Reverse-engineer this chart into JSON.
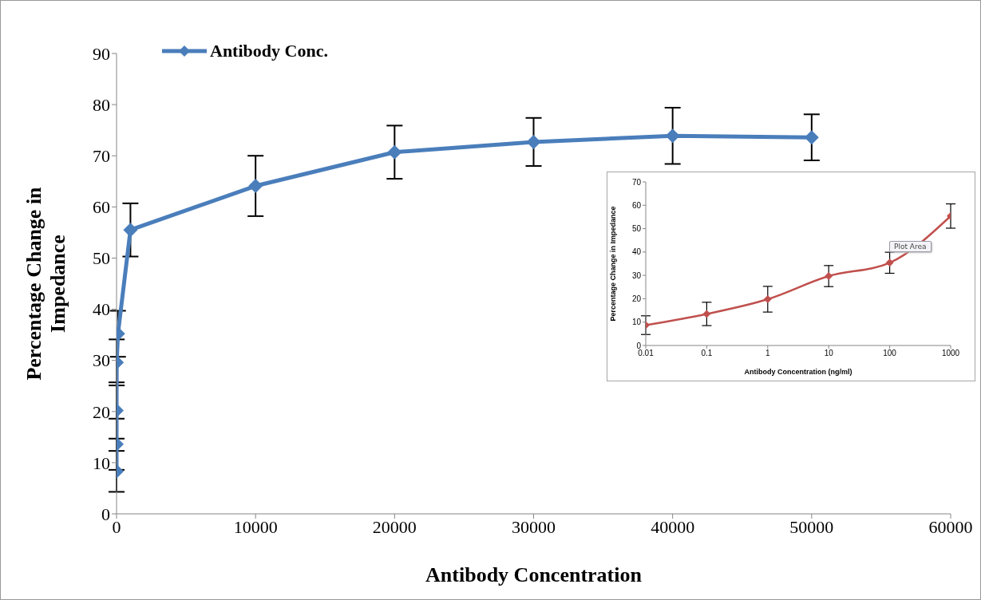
{
  "chart_data": [
    {
      "type": "line",
      "xlabel": "Antibody Concentration",
      "ylabel": "Percentage Change in Impedance",
      "x": [
        0.01,
        0.1,
        1,
        10,
        100,
        1000,
        10000,
        20000,
        30000,
        40000,
        50000
      ],
      "series": [
        {
          "name": "Antibody Conc.",
          "color": "#4a7ebb",
          "values": [
            8.3,
            13.6,
            20.2,
            29.6,
            35.2,
            55.5,
            64.1,
            70.7,
            72.7,
            73.9,
            73.6
          ],
          "errors": [
            4,
            5,
            5.5,
            4.5,
            4.5,
            5.2,
            5.9,
            5.2,
            4.7,
            5.5,
            4.5
          ]
        }
      ],
      "xlim": [
        0,
        60000
      ],
      "xticks": [
        0,
        10000,
        20000,
        30000,
        40000,
        50000,
        60000
      ],
      "ylim": [
        0,
        90
      ],
      "yticks": [
        0,
        10,
        20,
        30,
        40,
        50,
        60,
        70,
        80,
        90
      ],
      "legend": "top left",
      "marker": "diamond",
      "line_style": "solid"
    },
    {
      "type": "line",
      "xlabel": "Antibody Concentration (ng/ml)",
      "ylabel": "Percentage Change in Impedance",
      "x": [
        0.01,
        0.1,
        1,
        10,
        100,
        1000
      ],
      "series": [
        {
          "color": "#c0504d",
          "values": [
            8.7,
            13.5,
            19.8,
            29.7,
            35.4,
            55.4
          ],
          "errors": [
            4,
            5,
            5.5,
            4.5,
            4.5,
            5.2
          ]
        }
      ],
      "log": "x",
      "xlim": [
        0.01,
        1000
      ],
      "xticks": [
        0.01,
        0.1,
        1,
        10,
        100,
        1000
      ],
      "ylim": [
        0,
        70
      ],
      "yticks": [
        0,
        10,
        20,
        30,
        40,
        50,
        60,
        70
      ],
      "legend": false,
      "marker": "diamond",
      "line_style": "solid",
      "annotations": [
        "Plot Area"
      ]
    }
  ]
}
